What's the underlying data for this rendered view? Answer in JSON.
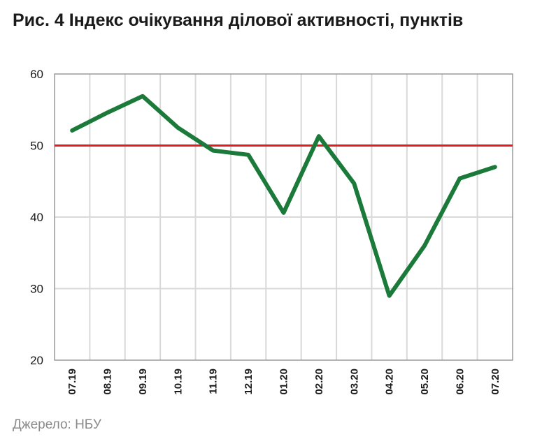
{
  "title": "Рис. 4 Індекс очікування ділової активності, пунктів",
  "source": "Джерело: НБУ",
  "chart_data": {
    "type": "line",
    "title": "Рис. 4 Індекс очікування ділової активності, пунктів",
    "xlabel": "",
    "ylabel": "",
    "categories": [
      "07.19",
      "08.19",
      "09.19",
      "10.19",
      "11.19",
      "12.19",
      "01.20",
      "02.20",
      "03.20",
      "04.20",
      "05.20",
      "06.20",
      "07.20"
    ],
    "series": [
      {
        "values": [
          52.1,
          54.6,
          56.9,
          52.5,
          49.3,
          48.7,
          40.6,
          51.3,
          44.7,
          29.0,
          36.0,
          45.4,
          47.0
        ],
        "color": "#1b7a3a"
      }
    ],
    "reference_line": {
      "value": 50,
      "color": "#e41a1c"
    },
    "ylim": [
      20,
      60
    ],
    "yticks": [
      20,
      30,
      40,
      50,
      60
    ],
    "grid": true,
    "legend": "none"
  }
}
